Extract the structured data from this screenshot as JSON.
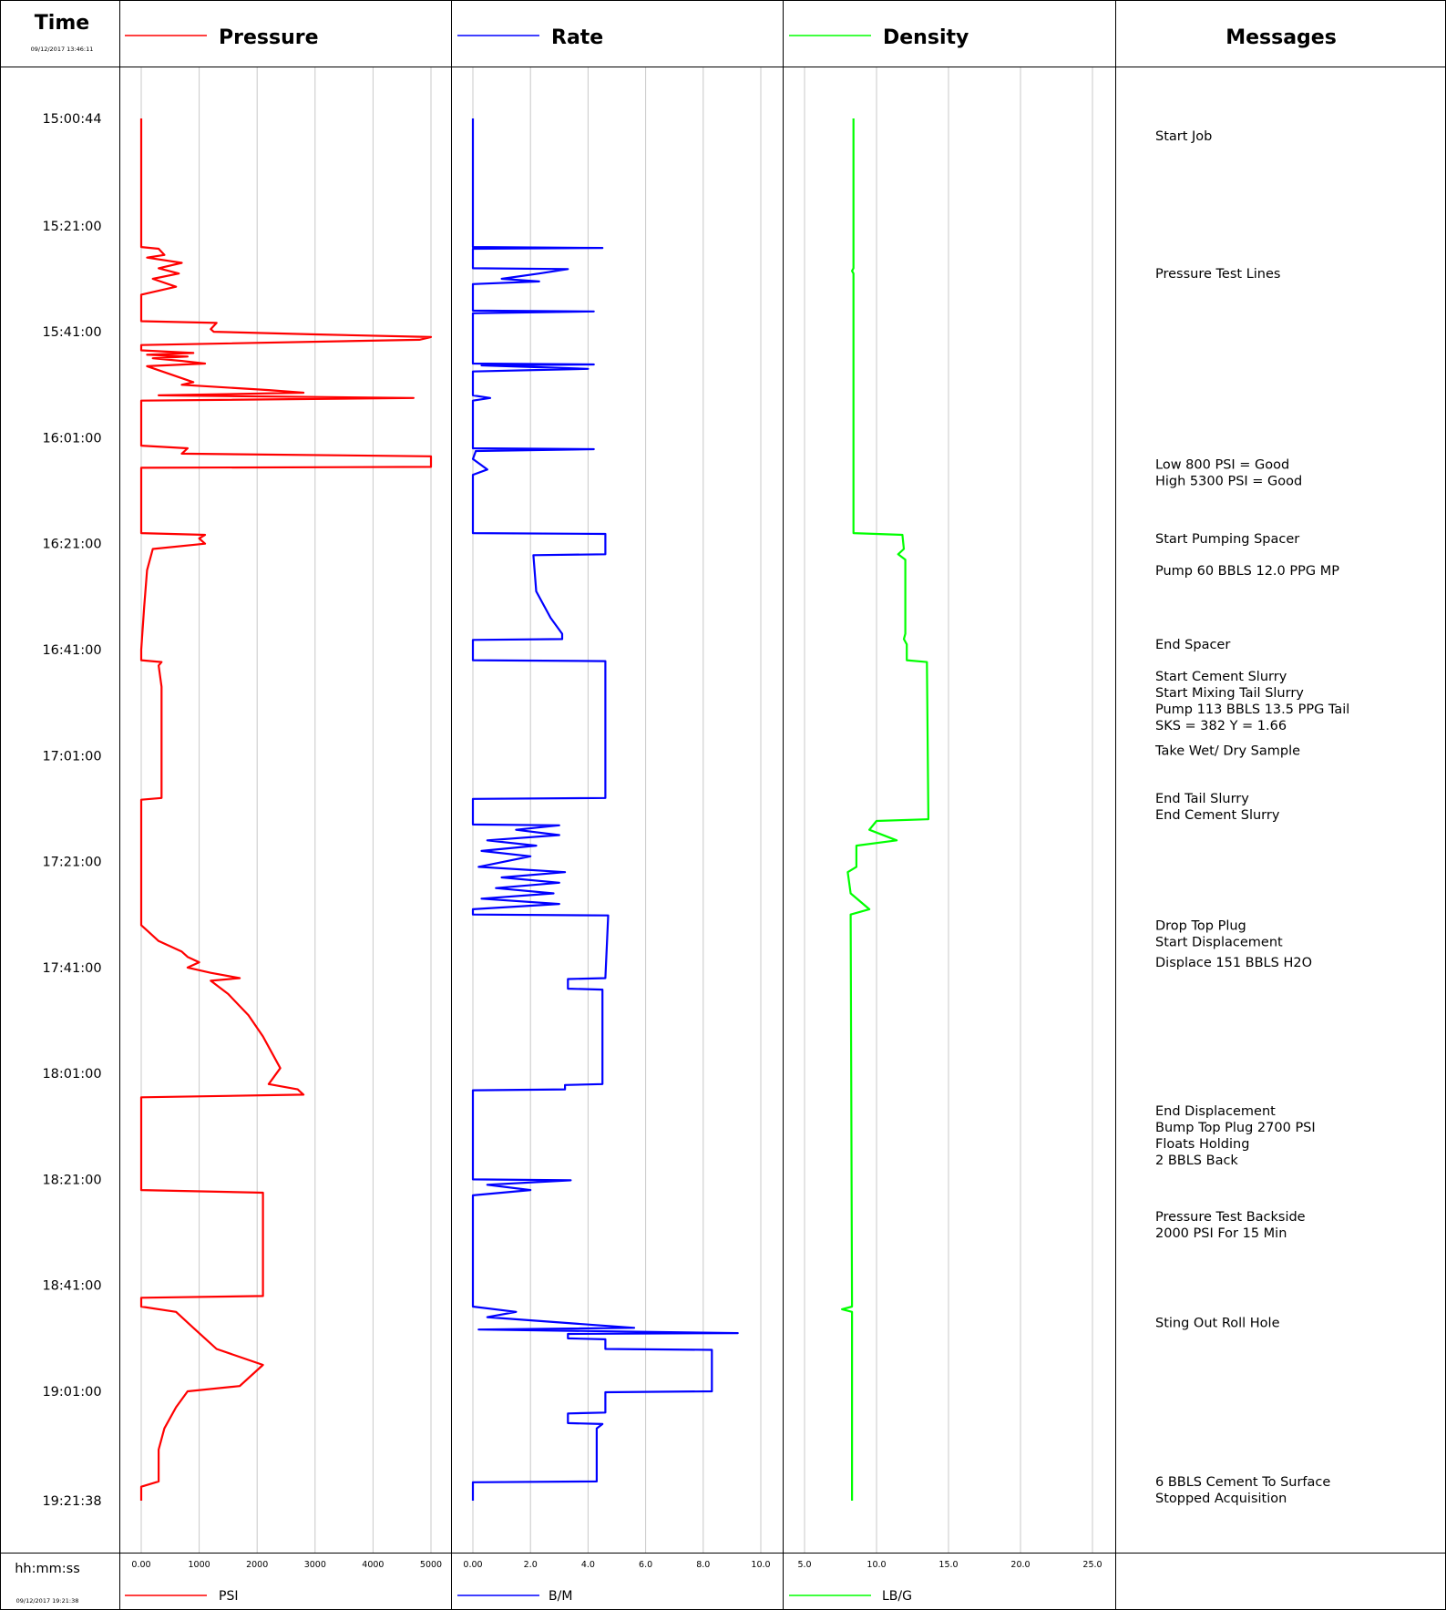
{
  "header": {
    "time_title": "Time",
    "start_stamp": "09/12/2017 13:46:11",
    "messages_title": "Messages"
  },
  "footer": {
    "time_format": "hh:mm:ss",
    "end_stamp": "09/12/2017 19:21:38"
  },
  "chart_data": {
    "type": "line",
    "orientation": "vertical-time",
    "time_axis": {
      "start": "15:00:44",
      "end": "19:21:38",
      "tick_labels": [
        "15:00:44",
        "15:21:00",
        "15:41:00",
        "16:01:00",
        "16:21:00",
        "16:41:00",
        "17:01:00",
        "17:21:00",
        "17:41:00",
        "18:01:00",
        "18:21:00",
        "18:41:00",
        "19:01:00",
        "19:21:38"
      ]
    },
    "grid": true,
    "tracks": [
      {
        "key": "pressure",
        "title": "Pressure",
        "unit": "PSI",
        "color": "#ff0000",
        "xlim": [
          0,
          5000
        ],
        "tick_labels": [
          "0.00",
          "1000",
          "2000",
          "3000",
          "4000",
          "5000"
        ],
        "ticks": [
          0,
          1000,
          2000,
          3000,
          4000,
          5000
        ],
        "points": [
          [
            "15:00:44",
            0
          ],
          [
            "15:25:00",
            0
          ],
          [
            "15:25:20",
            300
          ],
          [
            "15:26:30",
            400
          ],
          [
            "15:27:00",
            100
          ],
          [
            "15:28:00",
            700
          ],
          [
            "15:29:00",
            300
          ],
          [
            "15:30:00",
            650
          ],
          [
            "15:31:00",
            200
          ],
          [
            "15:32:30",
            600
          ],
          [
            "15:34:00",
            0
          ],
          [
            "15:39:00",
            0
          ],
          [
            "15:39:20",
            1300
          ],
          [
            "15:40:30",
            1200
          ],
          [
            "15:41:00",
            1250
          ],
          [
            "15:41:30",
            3000
          ],
          [
            "15:42:00",
            5000
          ],
          [
            "15:42:30",
            4800
          ],
          [
            "15:43:30",
            0
          ],
          [
            "15:44:30",
            0
          ],
          [
            "15:45:00",
            900
          ],
          [
            "15:45:20",
            100
          ],
          [
            "15:45:40",
            800
          ],
          [
            "15:46:00",
            200
          ],
          [
            "15:46:30",
            700
          ],
          [
            "15:47:00",
            1100
          ],
          [
            "15:47:30",
            100
          ],
          [
            "15:50:30",
            900
          ],
          [
            "15:51:00",
            700
          ],
          [
            "15:52:00",
            2200
          ],
          [
            "15:52:30",
            2800
          ],
          [
            "15:53:00",
            300
          ],
          [
            "15:53:30",
            4700
          ],
          [
            "15:54:00",
            0
          ],
          [
            "16:02:30",
            0
          ],
          [
            "16:03:00",
            800
          ],
          [
            "16:04:00",
            700
          ],
          [
            "16:04:30",
            5000
          ],
          [
            "16:06:30",
            5000
          ],
          [
            "16:06:40",
            0
          ],
          [
            "16:19:00",
            0
          ],
          [
            "16:19:20",
            1100
          ],
          [
            "16:20:00",
            1000
          ],
          [
            "16:21:00",
            1100
          ],
          [
            "16:22:00",
            200
          ],
          [
            "16:26:00",
            100
          ],
          [
            "16:33:00",
            50
          ],
          [
            "16:41:00",
            0
          ],
          [
            "16:43:00",
            0
          ],
          [
            "16:43:20",
            350
          ],
          [
            "16:44:00",
            300
          ],
          [
            "16:48:00",
            350
          ],
          [
            "16:55:00",
            350
          ],
          [
            "17:09:00",
            350
          ],
          [
            "17:09:20",
            0
          ],
          [
            "17:33:00",
            0
          ],
          [
            "17:34:00",
            100
          ],
          [
            "17:36:00",
            300
          ],
          [
            "17:38:00",
            700
          ],
          [
            "17:39:00",
            800
          ],
          [
            "17:40:00",
            1000
          ],
          [
            "17:41:00",
            800
          ],
          [
            "17:42:00",
            1200
          ],
          [
            "17:43:00",
            1700
          ],
          [
            "17:43:30",
            1200
          ],
          [
            "17:46:00",
            1500
          ],
          [
            "17:50:00",
            1850
          ],
          [
            "17:54:00",
            2100
          ],
          [
            "18:00:00",
            2400
          ],
          [
            "18:03:00",
            2200
          ],
          [
            "18:04:00",
            2700
          ],
          [
            "18:05:00",
            2800
          ],
          [
            "18:05:30",
            0
          ],
          [
            "18:23:00",
            0
          ],
          [
            "18:23:30",
            2100
          ],
          [
            "18:40:00",
            2100
          ],
          [
            "18:43:00",
            2100
          ],
          [
            "18:43:20",
            0
          ],
          [
            "18:45:00",
            0
          ],
          [
            "18:46:00",
            600
          ],
          [
            "18:49:00",
            900
          ],
          [
            "18:51:00",
            1100
          ],
          [
            "18:53:00",
            1300
          ],
          [
            "18:56:00",
            2100
          ],
          [
            "19:00:00",
            1700
          ],
          [
            "19:01:00",
            800
          ],
          [
            "19:04:00",
            600
          ],
          [
            "19:08:00",
            400
          ],
          [
            "19:12:00",
            300
          ],
          [
            "19:18:00",
            300
          ],
          [
            "19:19:00",
            0
          ],
          [
            "19:21:38",
            0
          ]
        ]
      },
      {
        "key": "rate",
        "title": "Rate",
        "unit": "B/M",
        "color": "#0000ff",
        "xlim": [
          0,
          10
        ],
        "tick_labels": [
          "0.00",
          "2.0",
          "4.0",
          "6.0",
          "8.0",
          "10.0"
        ],
        "ticks": [
          0,
          2,
          4,
          6,
          8,
          10
        ],
        "points": [
          [
            "15:00:44",
            0
          ],
          [
            "15:25:00",
            0
          ],
          [
            "15:25:10",
            4.5
          ],
          [
            "15:25:20",
            0
          ],
          [
            "15:29:00",
            0
          ],
          [
            "15:29:10",
            3.3
          ],
          [
            "15:30:00",
            2.3
          ],
          [
            "15:31:00",
            1.0
          ],
          [
            "15:31:30",
            2.3
          ],
          [
            "15:32:00",
            0
          ],
          [
            "15:37:00",
            0
          ],
          [
            "15:37:10",
            4.2
          ],
          [
            "15:37:30",
            0
          ],
          [
            "15:47:00",
            0
          ],
          [
            "15:47:10",
            4.2
          ],
          [
            "15:47:20",
            0.3
          ],
          [
            "15:48:00",
            4.0
          ],
          [
            "15:48:30",
            0
          ],
          [
            "15:53:00",
            0
          ],
          [
            "15:53:30",
            0.6
          ],
          [
            "15:54:00",
            0
          ],
          [
            "16:03:00",
            0
          ],
          [
            "16:03:10",
            4.2
          ],
          [
            "16:03:30",
            0.1
          ],
          [
            "16:05:00",
            0
          ],
          [
            "16:07:00",
            0.5
          ],
          [
            "16:08:00",
            0
          ],
          [
            "16:19:00",
            0
          ],
          [
            "16:19:10",
            4.6
          ],
          [
            "16:23:00",
            4.6
          ],
          [
            "16:23:10",
            2.1
          ],
          [
            "16:30:00",
            2.2
          ],
          [
            "16:35:00",
            2.7
          ],
          [
            "16:38:00",
            3.1
          ],
          [
            "16:39:00",
            3.1
          ],
          [
            "16:39:10",
            0
          ],
          [
            "16:43:00",
            0
          ],
          [
            "16:43:10",
            4.6
          ],
          [
            "17:09:00",
            4.6
          ],
          [
            "17:09:10",
            0
          ],
          [
            "17:14:00",
            0
          ],
          [
            "17:14:10",
            3.0
          ],
          [
            "17:15:00",
            1.5
          ],
          [
            "17:16:00",
            3.0
          ],
          [
            "17:17:00",
            0.5
          ],
          [
            "17:18:00",
            2.2
          ],
          [
            "17:19:00",
            0.3
          ],
          [
            "17:20:00",
            2.0
          ],
          [
            "17:22:00",
            0.2
          ],
          [
            "17:23:00",
            3.2
          ],
          [
            "17:24:00",
            1.0
          ],
          [
            "17:25:00",
            3.0
          ],
          [
            "17:26:00",
            0.8
          ],
          [
            "17:27:00",
            2.8
          ],
          [
            "17:28:00",
            0.3
          ],
          [
            "17:29:00",
            3.0
          ],
          [
            "17:30:00",
            0
          ],
          [
            "17:31:00",
            0
          ],
          [
            "17:31:10",
            4.7
          ],
          [
            "17:43:00",
            4.6
          ],
          [
            "17:43:10",
            3.3
          ],
          [
            "17:45:00",
            3.3
          ],
          [
            "17:45:10",
            4.5
          ],
          [
            "18:03:00",
            4.5
          ],
          [
            "18:03:10",
            3.2
          ],
          [
            "18:04:00",
            3.2
          ],
          [
            "18:04:10",
            0
          ],
          [
            "18:21:00",
            0
          ],
          [
            "18:21:10",
            3.4
          ],
          [
            "18:22:00",
            0.5
          ],
          [
            "18:23:00",
            2.0
          ],
          [
            "18:24:00",
            0
          ],
          [
            "18:45:00",
            0
          ],
          [
            "18:46:00",
            1.5
          ],
          [
            "18:47:00",
            0.5
          ],
          [
            "18:48:00",
            3.0
          ],
          [
            "18:49:00",
            5.6
          ],
          [
            "18:49:20",
            0.2
          ],
          [
            "18:50:00",
            9.2
          ],
          [
            "18:50:10",
            3.3
          ],
          [
            "18:51:00",
            3.3
          ],
          [
            "18:51:10",
            4.6
          ],
          [
            "18:53:00",
            4.6
          ],
          [
            "18:53:10",
            8.3
          ],
          [
            "19:01:00",
            8.3
          ],
          [
            "19:01:10",
            4.6
          ],
          [
            "19:05:00",
            4.6
          ],
          [
            "19:05:10",
            3.3
          ],
          [
            "19:07:00",
            3.3
          ],
          [
            "19:07:10",
            4.5
          ],
          [
            "19:08:00",
            4.3
          ],
          [
            "19:18:00",
            4.3
          ],
          [
            "19:18:10",
            0
          ],
          [
            "19:21:38",
            0
          ]
        ]
      },
      {
        "key": "density",
        "title": "Density",
        "unit": "LB/G",
        "color": "#00ff00",
        "xlim": [
          5,
          25
        ],
        "tick_labels": [
          "5.0",
          "10.0",
          "15.0",
          "20.0",
          "25.0"
        ],
        "ticks": [
          5,
          10,
          15,
          20,
          25
        ],
        "points": [
          [
            "15:00:44",
            8.4
          ],
          [
            "15:29:00",
            8.4
          ],
          [
            "15:29:30",
            8.3
          ],
          [
            "15:30:00",
            8.4
          ],
          [
            "16:19:00",
            8.4
          ],
          [
            "16:19:20",
            11.8
          ],
          [
            "16:22:00",
            11.9
          ],
          [
            "16:23:00",
            11.5
          ],
          [
            "16:24:00",
            12.0
          ],
          [
            "16:38:00",
            12.0
          ],
          [
            "16:39:00",
            11.9
          ],
          [
            "16:40:00",
            12.1
          ],
          [
            "16:43:00",
            12.1
          ],
          [
            "16:43:20",
            13.5
          ],
          [
            "17:13:00",
            13.6
          ],
          [
            "17:13:20",
            10.0
          ],
          [
            "17:15:00",
            9.5
          ],
          [
            "17:17:00",
            11.4
          ],
          [
            "17:18:00",
            8.6
          ],
          [
            "17:22:00",
            8.6
          ],
          [
            "17:23:00",
            8.0
          ],
          [
            "17:27:00",
            8.2
          ],
          [
            "17:30:00",
            9.5
          ],
          [
            "17:31:00",
            8.2
          ],
          [
            "18:45:00",
            8.3
          ],
          [
            "18:45:30",
            7.6
          ],
          [
            "18:46:00",
            8.3
          ],
          [
            "19:21:38",
            8.3
          ]
        ]
      }
    ],
    "messages": [
      {
        "t": "15:04:00",
        "lines": [
          "Start Job"
        ]
      },
      {
        "t": "15:30:00",
        "lines": [
          "Pressure Test Lines"
        ]
      },
      {
        "t": "16:06:00",
        "lines": [
          "Low 800 PSI = Good",
          "High 5300 PSI = Good"
        ]
      },
      {
        "t": "16:20:00",
        "lines": [
          "Start Pumping Spacer"
        ]
      },
      {
        "t": "16:26:00",
        "lines": [
          "Pump 60 BBLS 12.0 PPG MP"
        ]
      },
      {
        "t": "16:40:00",
        "lines": [
          "End Spacer"
        ]
      },
      {
        "t": "16:46:00",
        "lines": [
          "Start Cement Slurry",
          "Start Mixing Tail Slurry",
          "Pump 113 BBLS 13.5 PPG Tail",
          "SKS = 382 Y = 1.66"
        ]
      },
      {
        "t": "17:00:00",
        "lines": [
          "Take Wet/ Dry Sample"
        ]
      },
      {
        "t": "17:09:00",
        "lines": [
          "End Tail Slurry",
          "End Cement Slurry"
        ]
      },
      {
        "t": "17:33:00",
        "lines": [
          "Drop Top Plug",
          "Start Displacement"
        ]
      },
      {
        "t": "17:40:00",
        "lines": [
          "Displace 151 BBLS H2O"
        ]
      },
      {
        "t": "18:08:00",
        "lines": [
          "End Displacement",
          "Bump Top Plug 2700 PSI",
          "Floats Holding",
          "2 BBLS Back"
        ]
      },
      {
        "t": "18:28:00",
        "lines": [
          "Pressure Test Backside",
          "2000 PSI For 15 Min"
        ]
      },
      {
        "t": "18:48:00",
        "lines": [
          "Sting Out Roll Hole"
        ]
      },
      {
        "t": "19:18:00",
        "lines": [
          "6 BBLS Cement To Surface",
          "Stopped Acquisition"
        ]
      }
    ]
  }
}
